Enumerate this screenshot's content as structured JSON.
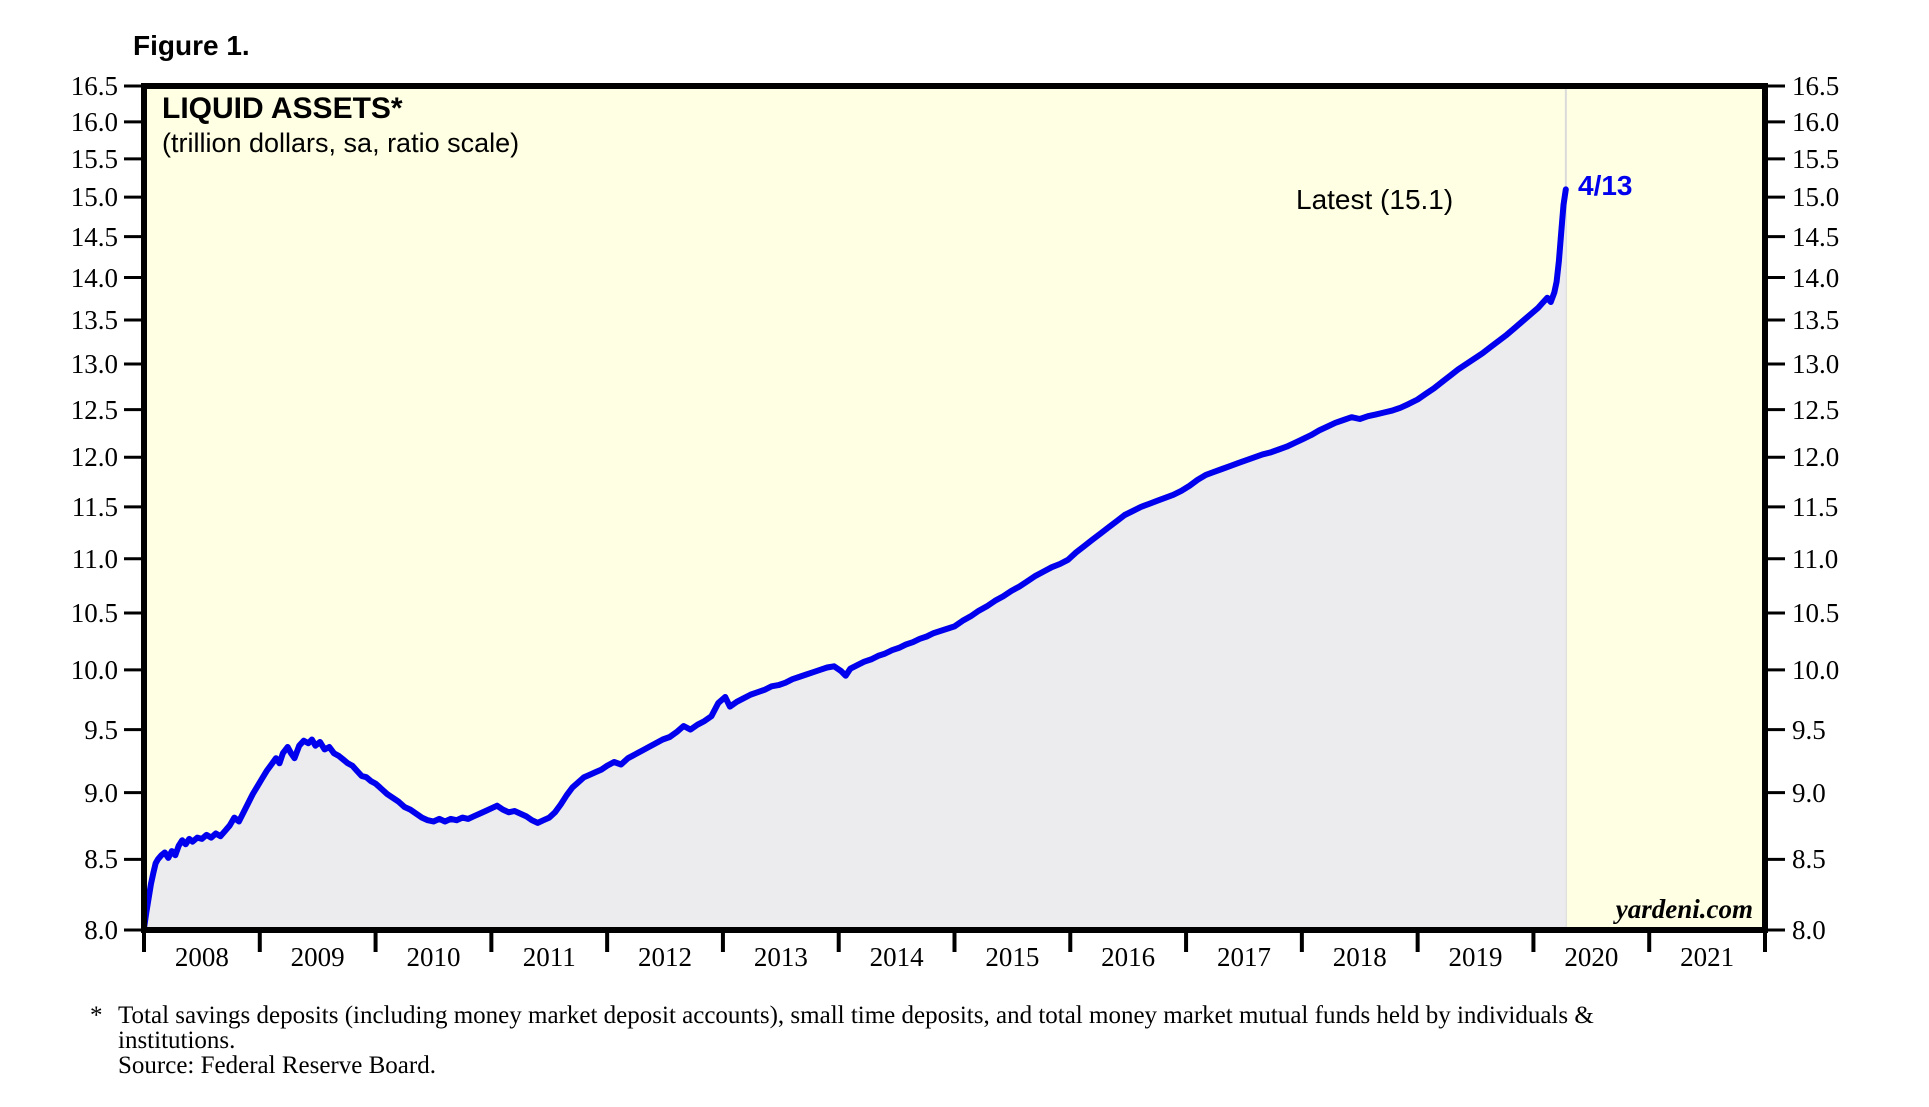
{
  "figure_label": "Figure 1.",
  "chart": {
    "title": "LIQUID ASSETS*",
    "subtitle": "(trillion dollars, sa, ratio scale)",
    "latest_annotation": "Latest (15.1)",
    "endpoint_label": "4/13",
    "watermark": "yardeni.com",
    "colors": {
      "plot_bg": "#FFFFE3",
      "area_fill": "#ECECEF",
      "line": "#0000EE",
      "frame": "#000000",
      "end_line": "#DBDBDB",
      "endpoint_text": "#0000EE"
    }
  },
  "footnote": {
    "marker": "*",
    "line1": "Total savings deposits (including money market deposit accounts), small time deposits, and total money market mutual funds held by individuals &",
    "line2": "institutions.",
    "source": "Source: Federal Reserve Board."
  },
  "chart_data": {
    "type": "line",
    "title": "LIQUID ASSETS*",
    "subtitle": "(trillion dollars, sa, ratio scale)",
    "y_scale": "log",
    "ylim": [
      8.0,
      16.5
    ],
    "y_ticks": [
      8.0,
      8.5,
      9.0,
      9.5,
      10.0,
      10.5,
      11.0,
      11.5,
      12.0,
      12.5,
      13.0,
      13.5,
      14.0,
      14.5,
      15.0,
      15.5,
      16.0,
      16.5
    ],
    "x_range": [
      2008,
      2022
    ],
    "x_years": [
      2008,
      2009,
      2010,
      2011,
      2012,
      2013,
      2014,
      2015,
      2016,
      2017,
      2018,
      2019,
      2020,
      2021
    ],
    "latest_value": 15.1,
    "latest_date_label": "4/13",
    "grid": false,
    "legend": "none",
    "series": [
      {
        "name": "Liquid Assets (trillion dollars, sa)",
        "points": [
          [
            2008.0,
            8.01
          ],
          [
            2008.02,
            8.12
          ],
          [
            2008.04,
            8.22
          ],
          [
            2008.06,
            8.32
          ],
          [
            2008.08,
            8.4
          ],
          [
            2008.1,
            8.47
          ],
          [
            2008.12,
            8.5
          ],
          [
            2008.15,
            8.53
          ],
          [
            2008.18,
            8.55
          ],
          [
            2008.21,
            8.51
          ],
          [
            2008.24,
            8.56
          ],
          [
            2008.27,
            8.53
          ],
          [
            2008.3,
            8.6
          ],
          [
            2008.33,
            8.64
          ],
          [
            2008.36,
            8.61
          ],
          [
            2008.39,
            8.65
          ],
          [
            2008.42,
            8.63
          ],
          [
            2008.46,
            8.66
          ],
          [
            2008.5,
            8.65
          ],
          [
            2008.54,
            8.68
          ],
          [
            2008.58,
            8.66
          ],
          [
            2008.62,
            8.69
          ],
          [
            2008.66,
            8.67
          ],
          [
            2008.7,
            8.71
          ],
          [
            2008.74,
            8.75
          ],
          [
            2008.78,
            8.81
          ],
          [
            2008.82,
            8.78
          ],
          [
            2008.86,
            8.85
          ],
          [
            2008.9,
            8.92
          ],
          [
            2008.94,
            8.99
          ],
          [
            2008.98,
            9.05
          ],
          [
            2009.02,
            9.11
          ],
          [
            2009.06,
            9.17
          ],
          [
            2009.1,
            9.22
          ],
          [
            2009.14,
            9.27
          ],
          [
            2009.17,
            9.23
          ],
          [
            2009.2,
            9.31
          ],
          [
            2009.24,
            9.36
          ],
          [
            2009.27,
            9.31
          ],
          [
            2009.3,
            9.27
          ],
          [
            2009.34,
            9.37
          ],
          [
            2009.38,
            9.41
          ],
          [
            2009.42,
            9.39
          ],
          [
            2009.45,
            9.42
          ],
          [
            2009.48,
            9.37
          ],
          [
            2009.52,
            9.4
          ],
          [
            2009.56,
            9.34
          ],
          [
            2009.6,
            9.36
          ],
          [
            2009.64,
            9.31
          ],
          [
            2009.68,
            9.29
          ],
          [
            2009.72,
            9.26
          ],
          [
            2009.76,
            9.23
          ],
          [
            2009.8,
            9.21
          ],
          [
            2009.84,
            9.17
          ],
          [
            2009.88,
            9.13
          ],
          [
            2009.92,
            9.12
          ],
          [
            2009.96,
            9.09
          ],
          [
            2010.0,
            9.07
          ],
          [
            2010.05,
            9.03
          ],
          [
            2010.1,
            8.99
          ],
          [
            2010.15,
            8.96
          ],
          [
            2010.2,
            8.93
          ],
          [
            2010.25,
            8.89
          ],
          [
            2010.3,
            8.87
          ],
          [
            2010.35,
            8.84
          ],
          [
            2010.4,
            8.81
          ],
          [
            2010.45,
            8.79
          ],
          [
            2010.5,
            8.78
          ],
          [
            2010.55,
            8.8
          ],
          [
            2010.6,
            8.78
          ],
          [
            2010.65,
            8.8
          ],
          [
            2010.7,
            8.79
          ],
          [
            2010.75,
            8.81
          ],
          [
            2010.8,
            8.8
          ],
          [
            2010.85,
            8.82
          ],
          [
            2010.9,
            8.84
          ],
          [
            2010.95,
            8.86
          ],
          [
            2011.0,
            8.88
          ],
          [
            2011.05,
            8.9
          ],
          [
            2011.1,
            8.87
          ],
          [
            2011.15,
            8.85
          ],
          [
            2011.2,
            8.86
          ],
          [
            2011.25,
            8.84
          ],
          [
            2011.3,
            8.82
          ],
          [
            2011.35,
            8.79
          ],
          [
            2011.4,
            8.77
          ],
          [
            2011.45,
            8.79
          ],
          [
            2011.5,
            8.81
          ],
          [
            2011.55,
            8.85
          ],
          [
            2011.6,
            8.91
          ],
          [
            2011.65,
            8.98
          ],
          [
            2011.7,
            9.04
          ],
          [
            2011.75,
            9.08
          ],
          [
            2011.8,
            9.12
          ],
          [
            2011.85,
            9.14
          ],
          [
            2011.9,
            9.16
          ],
          [
            2011.95,
            9.18
          ],
          [
            2012.0,
            9.21
          ],
          [
            2012.06,
            9.24
          ],
          [
            2012.12,
            9.22
          ],
          [
            2012.18,
            9.27
          ],
          [
            2012.24,
            9.3
          ],
          [
            2012.3,
            9.33
          ],
          [
            2012.36,
            9.36
          ],
          [
            2012.42,
            9.39
          ],
          [
            2012.48,
            9.42
          ],
          [
            2012.54,
            9.44
          ],
          [
            2012.6,
            9.48
          ],
          [
            2012.66,
            9.53
          ],
          [
            2012.72,
            9.5
          ],
          [
            2012.78,
            9.54
          ],
          [
            2012.84,
            9.57
          ],
          [
            2012.9,
            9.61
          ],
          [
            2012.96,
            9.72
          ],
          [
            2013.02,
            9.77
          ],
          [
            2013.06,
            9.69
          ],
          [
            2013.12,
            9.73
          ],
          [
            2013.18,
            9.76
          ],
          [
            2013.24,
            9.79
          ],
          [
            2013.3,
            9.81
          ],
          [
            2013.36,
            9.83
          ],
          [
            2013.42,
            9.86
          ],
          [
            2013.48,
            9.87
          ],
          [
            2013.54,
            9.89
          ],
          [
            2013.6,
            9.92
          ],
          [
            2013.66,
            9.94
          ],
          [
            2013.72,
            9.96
          ],
          [
            2013.78,
            9.98
          ],
          [
            2013.84,
            10.0
          ],
          [
            2013.9,
            10.02
          ],
          [
            2013.96,
            10.03
          ],
          [
            2014.02,
            9.99
          ],
          [
            2014.06,
            9.95
          ],
          [
            2014.1,
            10.01
          ],
          [
            2014.16,
            10.04
          ],
          [
            2014.22,
            10.07
          ],
          [
            2014.28,
            10.09
          ],
          [
            2014.34,
            10.12
          ],
          [
            2014.4,
            10.14
          ],
          [
            2014.46,
            10.17
          ],
          [
            2014.52,
            10.19
          ],
          [
            2014.58,
            10.22
          ],
          [
            2014.64,
            10.24
          ],
          [
            2014.7,
            10.27
          ],
          [
            2014.76,
            10.29
          ],
          [
            2014.82,
            10.32
          ],
          [
            2014.88,
            10.34
          ],
          [
            2014.94,
            10.36
          ],
          [
            2015.0,
            10.38
          ],
          [
            2015.07,
            10.43
          ],
          [
            2015.14,
            10.47
          ],
          [
            2015.21,
            10.52
          ],
          [
            2015.28,
            10.56
          ],
          [
            2015.35,
            10.61
          ],
          [
            2015.42,
            10.65
          ],
          [
            2015.49,
            10.7
          ],
          [
            2015.56,
            10.74
          ],
          [
            2015.63,
            10.79
          ],
          [
            2015.7,
            10.84
          ],
          [
            2015.77,
            10.88
          ],
          [
            2015.84,
            10.92
          ],
          [
            2015.91,
            10.95
          ],
          [
            2015.98,
            10.99
          ],
          [
            2016.05,
            11.06
          ],
          [
            2016.12,
            11.12
          ],
          [
            2016.19,
            11.18
          ],
          [
            2016.26,
            11.24
          ],
          [
            2016.33,
            11.3
          ],
          [
            2016.4,
            11.36
          ],
          [
            2016.47,
            11.42
          ],
          [
            2016.54,
            11.46
          ],
          [
            2016.61,
            11.5
          ],
          [
            2016.68,
            11.53
          ],
          [
            2016.75,
            11.56
          ],
          [
            2016.82,
            11.59
          ],
          [
            2016.89,
            11.62
          ],
          [
            2016.96,
            11.66
          ],
          [
            2017.03,
            11.71
          ],
          [
            2017.1,
            11.77
          ],
          [
            2017.17,
            11.82
          ],
          [
            2017.24,
            11.85
          ],
          [
            2017.31,
            11.88
          ],
          [
            2017.38,
            11.91
          ],
          [
            2017.45,
            11.94
          ],
          [
            2017.52,
            11.97
          ],
          [
            2017.59,
            12.0
          ],
          [
            2017.66,
            12.03
          ],
          [
            2017.73,
            12.05
          ],
          [
            2017.8,
            12.08
          ],
          [
            2017.87,
            12.11
          ],
          [
            2017.94,
            12.15
          ],
          [
            2018.01,
            12.19
          ],
          [
            2018.08,
            12.23
          ],
          [
            2018.15,
            12.28
          ],
          [
            2018.22,
            12.32
          ],
          [
            2018.29,
            12.36
          ],
          [
            2018.36,
            12.39
          ],
          [
            2018.43,
            12.42
          ],
          [
            2018.5,
            12.4
          ],
          [
            2018.57,
            12.43
          ],
          [
            2018.64,
            12.45
          ],
          [
            2018.71,
            12.47
          ],
          [
            2018.78,
            12.49
          ],
          [
            2018.85,
            12.52
          ],
          [
            2018.92,
            12.56
          ],
          [
            2019.0,
            12.61
          ],
          [
            2019.07,
            12.67
          ],
          [
            2019.14,
            12.73
          ],
          [
            2019.21,
            12.8
          ],
          [
            2019.28,
            12.87
          ],
          [
            2019.35,
            12.94
          ],
          [
            2019.42,
            13.0
          ],
          [
            2019.49,
            13.06
          ],
          [
            2019.56,
            13.12
          ],
          [
            2019.63,
            13.19
          ],
          [
            2019.7,
            13.26
          ],
          [
            2019.77,
            13.33
          ],
          [
            2019.84,
            13.41
          ],
          [
            2019.91,
            13.49
          ],
          [
            2019.98,
            13.57
          ],
          [
            2020.04,
            13.64
          ],
          [
            2020.08,
            13.7
          ],
          [
            2020.12,
            13.76
          ],
          [
            2020.15,
            13.71
          ],
          [
            2020.18,
            13.82
          ],
          [
            2020.2,
            13.95
          ],
          [
            2020.22,
            14.2
          ],
          [
            2020.24,
            14.55
          ],
          [
            2020.26,
            14.9
          ],
          [
            2020.28,
            15.1
          ]
        ]
      }
    ]
  }
}
